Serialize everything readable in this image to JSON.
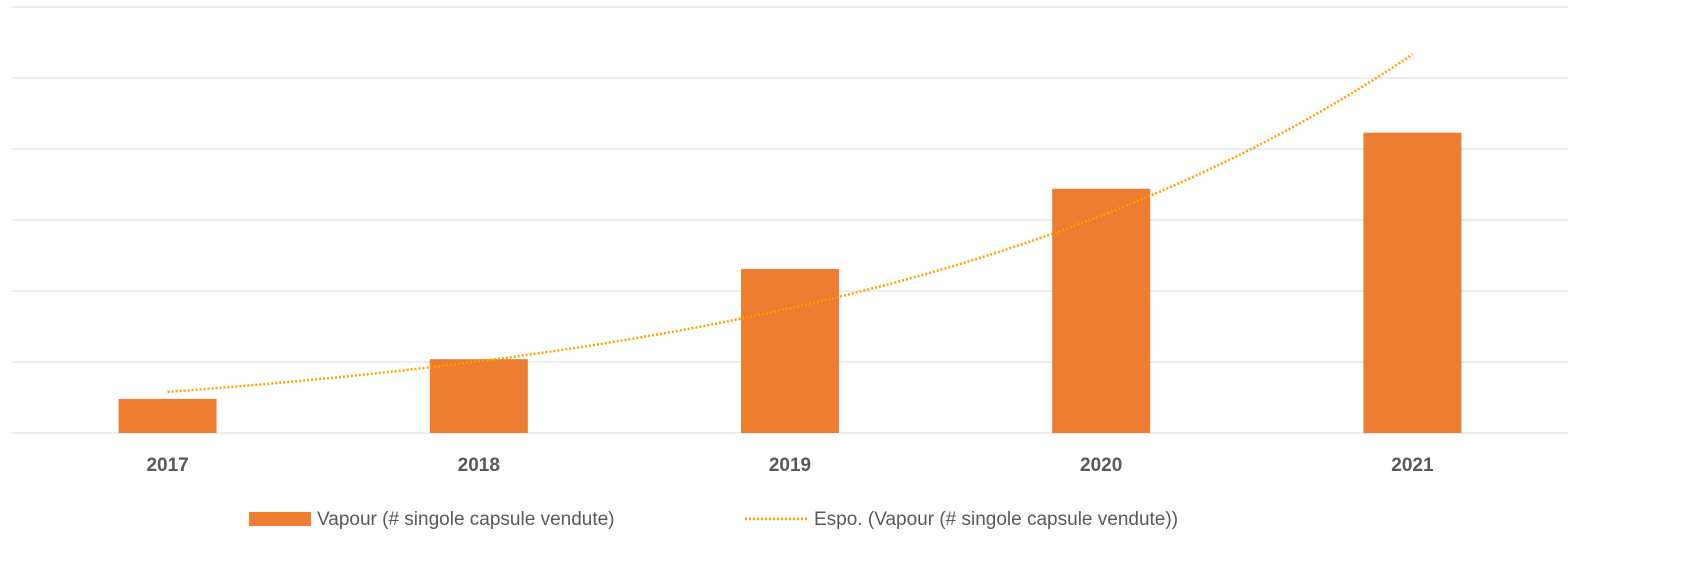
{
  "chart_data": {
    "type": "bar",
    "categories": [
      "2017",
      "2018",
      "2019",
      "2020",
      "2021"
    ],
    "series": [
      {
        "name": "Vapour (# singole capsule vendute)",
        "color": "#ed7d31",
        "values": [
          0.48,
          1.04,
          2.31,
          3.44,
          4.23
        ]
      }
    ],
    "trendline": {
      "type": "exponential",
      "name": "Espo. (Vapour (# singole capsule vendute))",
      "color": "#ffa000"
    },
    "ylim": [
      0,
      6
    ],
    "yticks": [
      0,
      1,
      2,
      3,
      4,
      5,
      6
    ],
    "grid": true,
    "legend": "bottom"
  }
}
